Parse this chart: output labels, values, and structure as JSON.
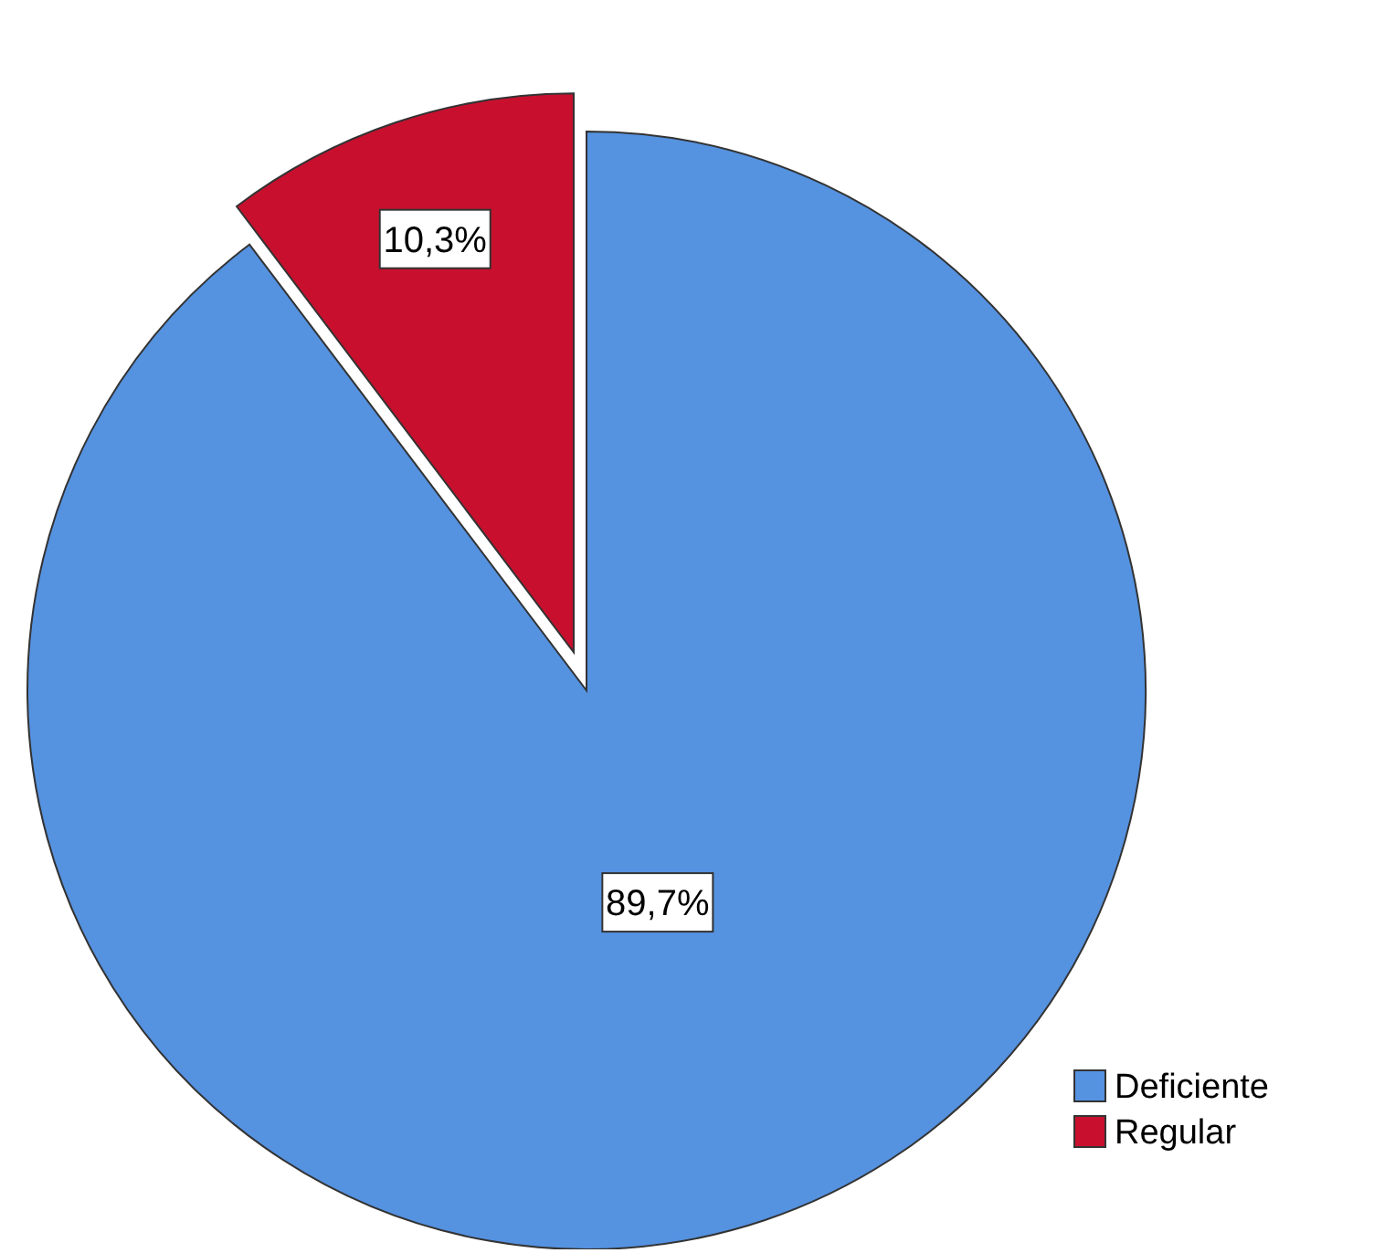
{
  "chart_data": {
    "type": "pie",
    "categories": [
      "Deficiente",
      "Regular"
    ],
    "values": [
      89.7,
      10.3
    ],
    "colors": [
      "#5592e0",
      "#c8102e"
    ],
    "value_labels": [
      "89,7%",
      "10,3%"
    ],
    "legend": "bottom right"
  }
}
